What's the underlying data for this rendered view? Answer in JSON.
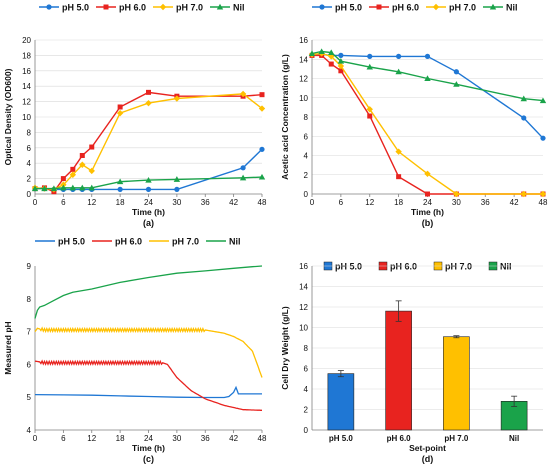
{
  "colors": {
    "ph5": "#1f77d4",
    "ph6": "#e8231f",
    "ph7": "#ffc000",
    "nil": "#1aa34a",
    "axis": "#7f7f7f",
    "grid": "#d9d9d9"
  },
  "chart_data": [
    {
      "panel": "(a)",
      "type": "line",
      "xlabel": "Time (h)",
      "ylabel": "Optical Density (OD600)",
      "xlim": [
        0,
        48
      ],
      "ylim": [
        0,
        20
      ],
      "xticks": [
        0,
        6,
        12,
        18,
        24,
        30,
        36,
        42,
        48
      ],
      "yticks": [
        0,
        2,
        4,
        6,
        8,
        10,
        12,
        14,
        16,
        18,
        20
      ],
      "grid": true,
      "legend_position": "top",
      "series": [
        {
          "name": "pH 5.0",
          "marker": "circle",
          "x": [
            0,
            2,
            4,
            6,
            8,
            10,
            12,
            18,
            24,
            30,
            44,
            48
          ],
          "y": [
            0.7,
            0.7,
            0.6,
            0.6,
            0.6,
            0.6,
            0.6,
            0.6,
            0.6,
            0.6,
            3.4,
            5.8
          ]
        },
        {
          "name": "pH 6.0",
          "marker": "square",
          "x": [
            0,
            2,
            4,
            6,
            8,
            10,
            12,
            18,
            24,
            30,
            44,
            48
          ],
          "y": [
            0.7,
            0.8,
            0.3,
            2.0,
            3.2,
            5.0,
            6.1,
            11.3,
            13.2,
            12.7,
            12.7,
            12.9
          ]
        },
        {
          "name": "pH 7.0",
          "marker": "diamond",
          "x": [
            0,
            2,
            4,
            6,
            8,
            10,
            12,
            18,
            24,
            30,
            44,
            48
          ],
          "y": [
            0.8,
            0.7,
            0.6,
            1.2,
            2.5,
            3.8,
            3.0,
            10.5,
            11.8,
            12.4,
            13.0,
            11.1
          ]
        },
        {
          "name": "Nil",
          "marker": "triangle",
          "x": [
            0,
            2,
            4,
            6,
            8,
            10,
            12,
            18,
            24,
            30,
            44,
            48
          ],
          "y": [
            0.7,
            0.7,
            0.7,
            0.8,
            0.8,
            0.8,
            0.8,
            1.6,
            1.8,
            1.9,
            2.1,
            2.2
          ]
        }
      ]
    },
    {
      "panel": "(b)",
      "type": "line",
      "xlabel": "Time (h)",
      "ylabel": "Acetic acid Concentration (g/L)",
      "xlim": [
        0,
        48
      ],
      "ylim": [
        0,
        16
      ],
      "xticks": [
        0,
        6,
        12,
        18,
        24,
        30,
        36,
        42,
        48
      ],
      "yticks": [
        0,
        2,
        4,
        6,
        8,
        10,
        12,
        14,
        16
      ],
      "grid": true,
      "legend_position": "top",
      "series": [
        {
          "name": "pH 5.0",
          "marker": "circle",
          "x": [
            0,
            2,
            4,
            6,
            12,
            18,
            24,
            30,
            44,
            48
          ],
          "y": [
            14.4,
            14.5,
            14.4,
            14.4,
            14.3,
            14.3,
            14.3,
            12.7,
            7.9,
            5.8
          ]
        },
        {
          "name": "pH 6.0",
          "marker": "square",
          "x": [
            0,
            2,
            4,
            6,
            12,
            18,
            24,
            30,
            44,
            48
          ],
          "y": [
            14.4,
            14.4,
            13.5,
            12.8,
            8.1,
            1.8,
            0,
            0,
            0,
            0
          ]
        },
        {
          "name": "pH 7.0",
          "marker": "diamond",
          "x": [
            0,
            2,
            4,
            6,
            12,
            18,
            24,
            30,
            44,
            48
          ],
          "y": [
            14.5,
            14.6,
            14.3,
            13.3,
            8.8,
            4.4,
            2.1,
            0,
            0,
            0
          ]
        },
        {
          "name": "Nil",
          "marker": "triangle",
          "x": [
            0,
            2,
            4,
            6,
            12,
            18,
            24,
            30,
            44,
            48
          ],
          "y": [
            14.6,
            14.8,
            14.7,
            13.8,
            13.2,
            12.7,
            12.0,
            11.4,
            9.9,
            9.7
          ]
        }
      ]
    },
    {
      "panel": "(c)",
      "type": "line",
      "xlabel": "Time (h)",
      "ylabel": "Measured pH",
      "xlim": [
        0,
        48
      ],
      "ylim": [
        4,
        9
      ],
      "xticks": [
        0,
        6,
        12,
        18,
        24,
        30,
        36,
        42,
        48
      ],
      "yticks": [
        4,
        5,
        6,
        7,
        8,
        9
      ],
      "grid": false,
      "legend_position": "top",
      "series": [
        {
          "name": "pH 5.0",
          "x": [
            0,
            6,
            12,
            18,
            24,
            30,
            36,
            40,
            41,
            42,
            42.5,
            43,
            44,
            48
          ],
          "y": [
            5.08,
            5.07,
            5.06,
            5.04,
            5.02,
            5.0,
            4.99,
            4.99,
            5.02,
            5.15,
            5.3,
            5.1,
            5.1,
            5.1
          ]
        },
        {
          "name": "pH 6.0",
          "x": [
            0,
            2,
            6,
            12,
            18,
            24,
            26,
            27,
            28,
            30,
            33,
            36,
            40,
            44,
            48
          ],
          "y": [
            6.1,
            6.05,
            6.05,
            6.05,
            6.05,
            6.05,
            6.05,
            6.05,
            6.0,
            5.6,
            5.2,
            4.95,
            4.75,
            4.62,
            4.6
          ]
        },
        {
          "name": "pH 7.0",
          "x": [
            0,
            0.5,
            2,
            6,
            12,
            18,
            24,
            30,
            36,
            38,
            40,
            42,
            44,
            46,
            47,
            48
          ],
          "y": [
            7.0,
            7.1,
            7.05,
            7.05,
            7.05,
            7.05,
            7.05,
            7.05,
            7.05,
            7.0,
            6.95,
            6.85,
            6.7,
            6.4,
            6.0,
            5.6
          ]
        },
        {
          "name": "Nil",
          "x": [
            0,
            0.5,
            1,
            2,
            4,
            6,
            8,
            12,
            18,
            24,
            30,
            36,
            42,
            46,
            48
          ],
          "y": [
            7.4,
            7.65,
            7.75,
            7.8,
            7.95,
            8.1,
            8.2,
            8.3,
            8.5,
            8.65,
            8.78,
            8.85,
            8.93,
            8.98,
            9.0
          ]
        }
      ]
    },
    {
      "panel": "(d)",
      "type": "bar",
      "xlabel": "Set-point",
      "ylabel": "Cell Dry Weight (g/L)",
      "ylim": [
        0,
        16
      ],
      "yticks": [
        0,
        2,
        4,
        6,
        8,
        10,
        12,
        14,
        16
      ],
      "grid": true,
      "legend_position": "top",
      "categories": [
        "pH 5.0",
        "pH 6.0",
        "pH 7.0",
        "Nil"
      ],
      "values": [
        5.5,
        11.6,
        9.1,
        2.8
      ],
      "errors": [
        0.3,
        1.0,
        0.1,
        0.5
      ]
    }
  ]
}
